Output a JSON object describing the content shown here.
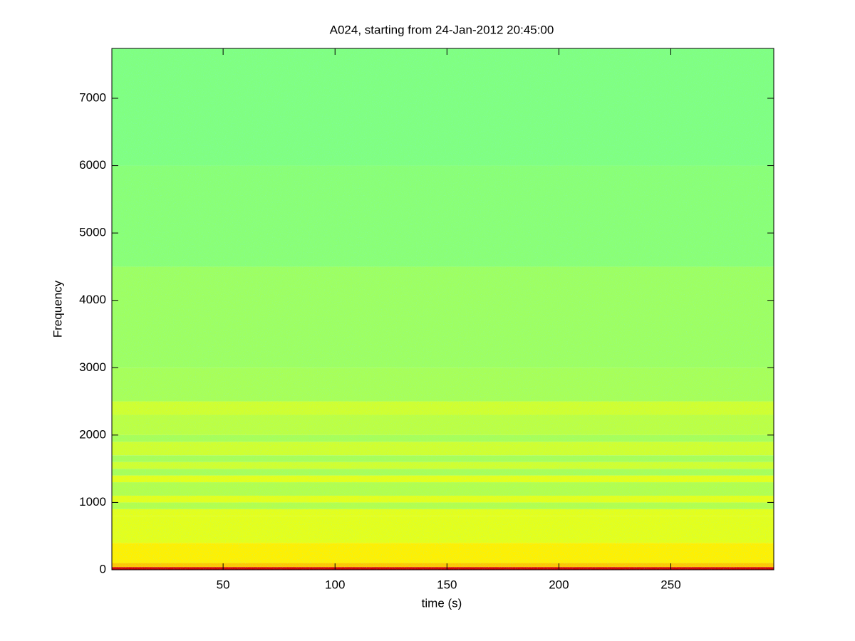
{
  "chart_data": {
    "type": "spectrogram",
    "title": "A024, starting from 24-Jan-2012 20:45:00",
    "xlabel": "time (s)",
    "ylabel": "Frequency",
    "xlim": [
      0.3,
      296
    ],
    "xticks": [
      50,
      100,
      150,
      200,
      250
    ],
    "ylim": [
      0,
      7740
    ],
    "yticks": [
      0,
      1000,
      2000,
      3000,
      4000,
      5000,
      6000,
      7000
    ],
    "colormap": "jet",
    "clim": [
      0,
      1
    ],
    "frequencies": [
      0,
      40,
      100,
      400,
      800,
      900,
      1000,
      1100,
      1300,
      1400,
      1500,
      1600,
      1700,
      1900,
      2000,
      2300,
      2500,
      3000,
      4500,
      6000
    ],
    "levels": [
      0.92,
      0.68,
      0.64,
      0.6,
      0.6,
      0.55,
      0.6,
      0.55,
      0.6,
      0.54,
      0.58,
      0.54,
      0.58,
      0.54,
      0.56,
      0.58,
      0.54,
      0.53,
      0.51,
      0.5
    ]
  }
}
